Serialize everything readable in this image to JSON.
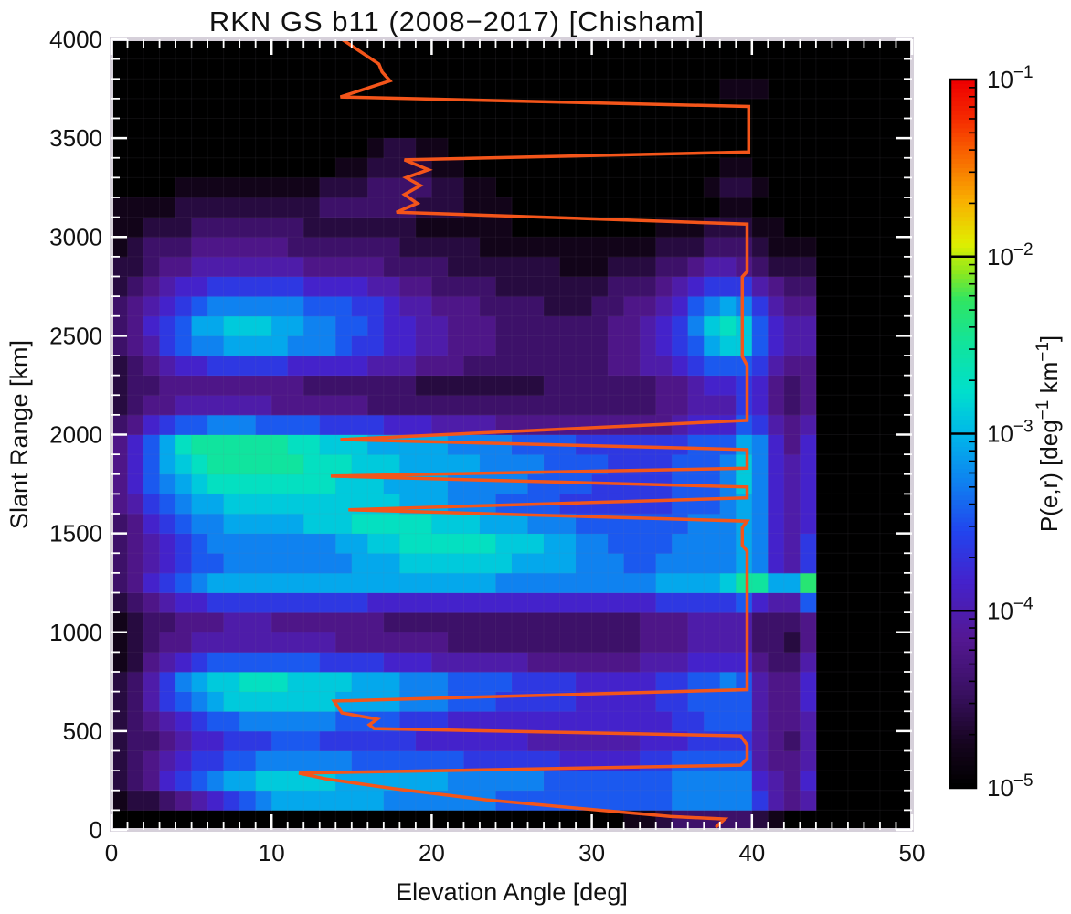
{
  "title": "RKN GS b11 (2008−2017) [Chisham]",
  "x_axis": {
    "label": "Elevation Angle [deg]",
    "range": [
      0,
      50
    ],
    "ticks": [
      0,
      10,
      20,
      30,
      40,
      50
    ],
    "minor_step": 1
  },
  "y_axis": {
    "label": "Slant Range [km]",
    "range": [
      0,
      4000
    ],
    "ticks": [
      0,
      500,
      1000,
      1500,
      2000,
      2500,
      3000,
      3500,
      4000
    ],
    "minor_step": 100
  },
  "colorbar": {
    "label": "P(e,r)  [deg^-1 km^-1]",
    "tick_exponents": [
      -1,
      -2,
      -3,
      -4,
      -5
    ],
    "scale": "log",
    "top_value": "1e-1",
    "bottom_value": "1e-5"
  },
  "style": {
    "plot_bg": "#000000",
    "frame_color": "#d6d0da",
    "tick_color": "#ffffff",
    "text_color": "#111111",
    "grid_color": "rgba(135,125,150,0.10)",
    "overlay_color": "#f4551a",
    "palette_stops": [
      [
        0.0,
        "#000000"
      ],
      [
        0.06,
        "#16051f"
      ],
      [
        0.13,
        "#381060"
      ],
      [
        0.21,
        "#541894"
      ],
      [
        0.29,
        "#4422cc"
      ],
      [
        0.36,
        "#2244ee"
      ],
      [
        0.43,
        "#0f80f0"
      ],
      [
        0.5,
        "#00b8ea"
      ],
      [
        0.56,
        "#00dfcc"
      ],
      [
        0.63,
        "#12e49a"
      ],
      [
        0.69,
        "#30e562"
      ],
      [
        0.73,
        "#8fe81c"
      ],
      [
        0.77,
        "#e0ee00"
      ],
      [
        0.83,
        "#f9b000"
      ],
      [
        0.9,
        "#f86000"
      ],
      [
        0.95,
        "#f52800"
      ],
      [
        1.0,
        "#ee0000"
      ]
    ]
  },
  "chart_data": {
    "type": "heatmap",
    "title": "RKN GS b11 (2008−2017) [Chisham]",
    "xlabel": "Elevation Angle [deg]",
    "ylabel": "Slant Range [km]",
    "xlim": [
      0,
      50
    ],
    "ylim": [
      0,
      4000
    ],
    "x_bin_deg": 1,
    "y_bin_km": 100,
    "x_data_extent_deg": [
      0,
      44
    ],
    "value_scale": "hex char per cell: level 0-15 maps logarithmically from P≈1e-5 (0, black) to P≈5e-3 (15, yellow-green); colorbar spans 1e-5 to 1e-1 deg^-1 km^-1",
    "grid_rows_bottom_to_top": [
      "00000000000000000000000000000000112333332100",
      "1223456789aaaaaaa999999988888888888999997545",
      "2346789aabbbbbaaaaaaa99999988888888999996546",
      "23456778899999988888887777776666677888885445",
      "23345667778887777776666666555555566677775435",
      "23456788999999888877766666666666666778885445",
      "235789abbbbbbbaaaa99988877777666667788885446",
      "23579abbcccbbbbaaa99988887777666667788985446",
      "12456788888887777666555555444444455566664335",
      "12344555555555444444433333333333344455553324",
      "12334445554444444333333333333333344455553334",
      "23456677777777776666666666666666667777786558",
      "346789aaaaaaaaaaaaaaaaaa9999999999aaaabddaae",
      "345678899999999aaabbbbbbbaaaa9998899999a9657",
      "34567899999999aabbccccccbbbaa9988889999a9657",
      "3467899aaaaabbbcccccbbbaaa9998888888999a9656",
      "45789aabbbbbbbbbbbaaa999888877777778889a9656",
      "4689abccccccccbbbaaaa999998888777778889b9656",
      "468abcddddddcccbbbaaaaa9999888877778889b9656",
      "468acddddddccbbbaaaaa999988887777777888a9646",
      "34678899988887777666555544444444444566687545",
      "23445555554444443333333333333333334455576434",
      "23344444444433333332222222233333334456676434",
      "23456677777666665554443333333334455678887544",
      "3457899aaaa99987766554443333333445678abb8655",
      "34678aabbbaa9988766554443333333445679bcb8655",
      "34567899999988877655444333322233445689a97544",
      "23456677777766665544333322222223334567775433",
      "22344555555544444333322222221112223345543222",
      "12333444444333333322222111111111112223332111",
      "11222333333322222221111110000000001112221100",
      "11112222222223333332221110000000000000110000",
      "00001111111112223333221100000000000001221000",
      "00000000000000112222110000000000000000110000",
      "00000000000000001221100000000000000000000000",
      "00000000000000000000000000000000000000000000",
      "00000000000000000000000000000000000000000000",
      "00000000000000000000000000000000000000111000",
      "00000000000000000000000000000000000000000000",
      "00000000000000000000000000000000000000000000"
    ],
    "overlay_line": {
      "name": "elevation-model-curve",
      "color": "#f4551a",
      "points_elev_range": [
        [
          14.4,
          4000
        ],
        [
          16.7,
          3875
        ],
        [
          16.9,
          3835
        ],
        [
          17.4,
          3790
        ],
        [
          14.3,
          3708
        ],
        [
          39.8,
          3660
        ],
        [
          39.8,
          3430
        ],
        [
          18.3,
          3390
        ],
        [
          19.8,
          3340
        ],
        [
          18.4,
          3300
        ],
        [
          19.3,
          3260
        ],
        [
          18.3,
          3215
        ],
        [
          19.1,
          3170
        ],
        [
          17.8,
          3125
        ],
        [
          39.7,
          3065
        ],
        [
          39.7,
          2825
        ],
        [
          39.4,
          2798
        ],
        [
          39.4,
          2395
        ],
        [
          39.7,
          2350
        ],
        [
          39.7,
          2072
        ],
        [
          14.3,
          1975
        ],
        [
          39.7,
          1924
        ],
        [
          39.7,
          1830
        ],
        [
          13.7,
          1790
        ],
        [
          39.7,
          1735
        ],
        [
          39.7,
          1680
        ],
        [
          14.8,
          1620
        ],
        [
          39.7,
          1562
        ],
        [
          39.4,
          1530
        ],
        [
          39.4,
          1440
        ],
        [
          39.7,
          1410
        ],
        [
          39.7,
          710
        ],
        [
          13.9,
          652
        ],
        [
          14.4,
          592
        ],
        [
          16.6,
          560
        ],
        [
          16.1,
          532
        ],
        [
          16.4,
          513
        ],
        [
          39.3,
          476
        ],
        [
          39.7,
          430
        ],
        [
          39.7,
          360
        ],
        [
          39.3,
          328
        ],
        [
          11.7,
          287
        ],
        [
          13.4,
          258
        ],
        [
          17.7,
          208
        ],
        [
          23.4,
          152
        ],
        [
          29.1,
          110
        ],
        [
          34.9,
          68
        ],
        [
          38.3,
          55
        ],
        [
          37.8,
          18
        ]
      ]
    }
  }
}
